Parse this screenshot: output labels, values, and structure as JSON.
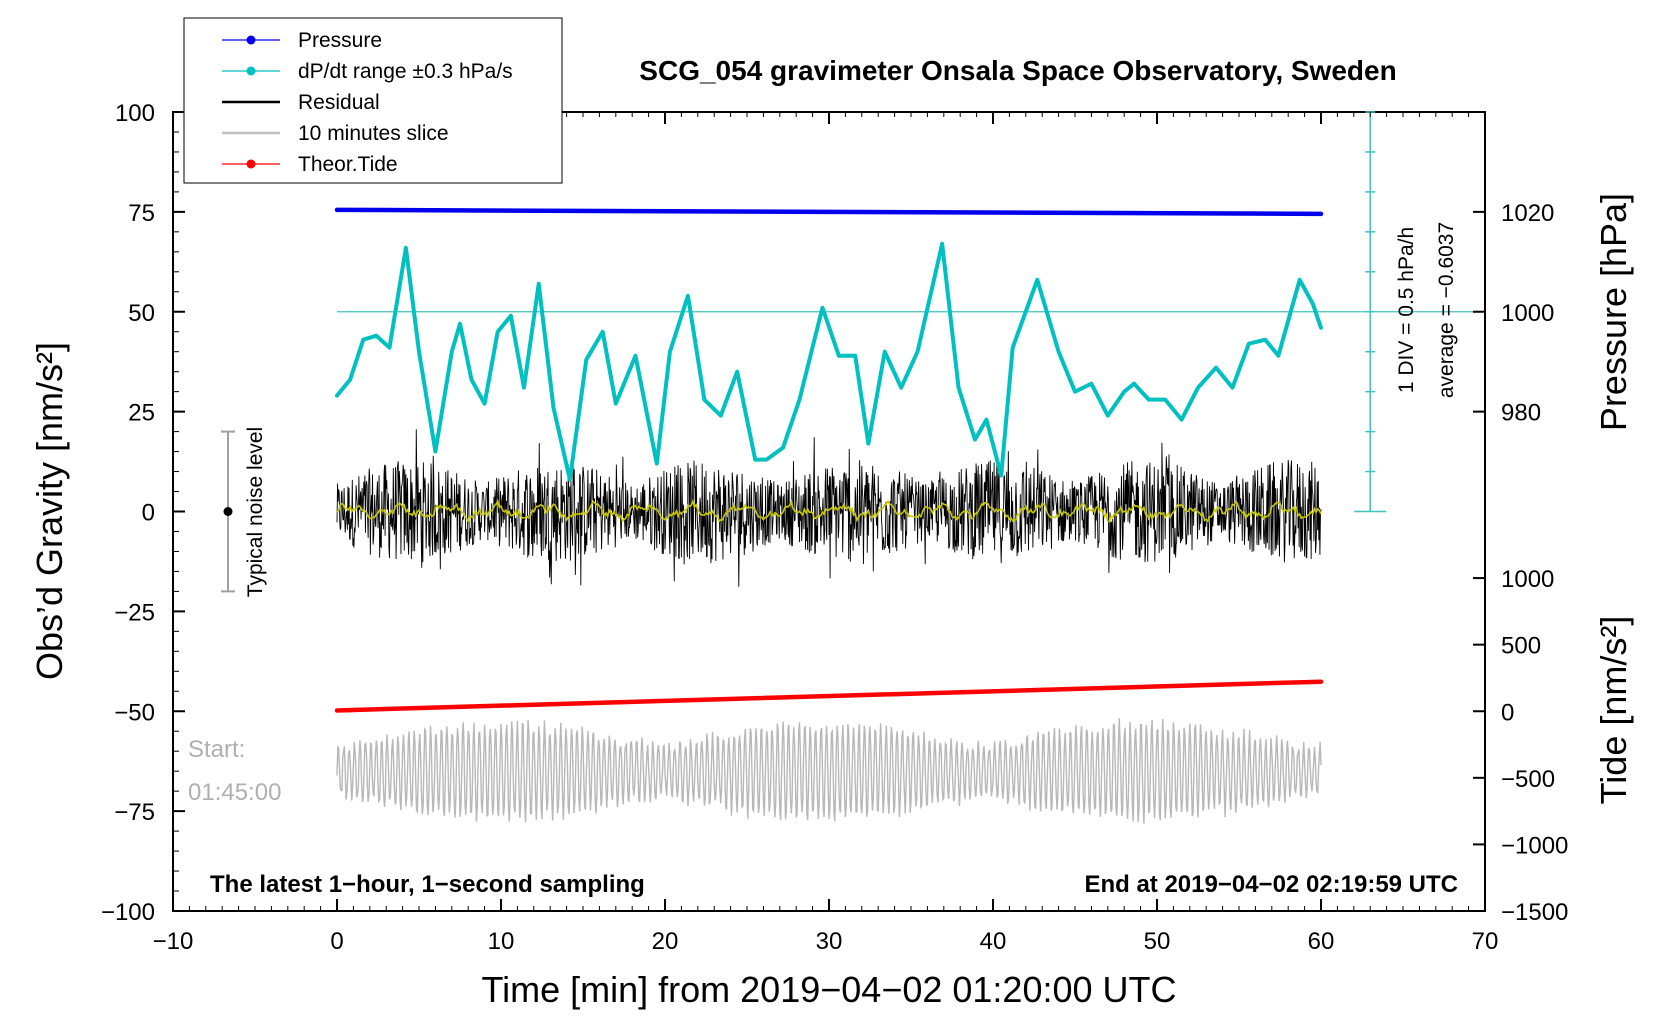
{
  "chart_data": {
    "type": "line",
    "title": "SCG_054 gravimeter Onsala Space Observatory, Sweden",
    "xlabel": "Time [min] from 2019−04−02 01:20:00 UTC",
    "ylabel_left": "Obs’d Gravity [nm/s²]",
    "ylabel_right_top": "Pressure [hPa]",
    "ylabel_right_bottom": "Tide [nm/s²]",
    "xlim": [
      -10,
      70
    ],
    "ylim": [
      -100,
      100
    ],
    "x_ticks": [
      "−10",
      "0",
      "10",
      "20",
      "30",
      "40",
      "50",
      "60",
      "70"
    ],
    "y_ticks": [
      "100",
      "75",
      "50",
      "25",
      "0",
      "−25",
      "−50",
      "−75",
      "−100"
    ],
    "pressure_ticks": [
      "1020",
      "1000",
      "980"
    ],
    "tide_ticks": [
      "1000",
      "500",
      "0",
      "−500",
      "−1000",
      "−1500"
    ],
    "legend": [
      {
        "label": "Pressure",
        "color": "#0000ee",
        "marker": true
      },
      {
        "label": "dP/dt range ±0.3 hPa/s",
        "color": "#00c0c0",
        "marker": true
      },
      {
        "label": "Residual",
        "color": "#000000",
        "marker": false
      },
      {
        "label": "10 minutes slice",
        "color": "#c0c0c0",
        "marker": false
      },
      {
        "label": "Theor.Tide",
        "color": "#ff0000",
        "marker": true
      }
    ],
    "series": [
      {
        "name": "Pressure",
        "color": "#0000ee",
        "x": [
          0,
          60
        ],
        "y": [
          75.5,
          74.5
        ]
      },
      {
        "name": "dP/dt",
        "color": "#00c0c0",
        "x": [
          0,
          0.8,
          1.6,
          2.4,
          3.2,
          4.2,
          5.0,
          6.0,
          7.0,
          7.5,
          8.2,
          9.0,
          9.8,
          10.6,
          11.4,
          12.3,
          13.2,
          14.2,
          15.2,
          16.2,
          17.0,
          18.2,
          19.5,
          20.3,
          21.4,
          22.4,
          23.4,
          24.4,
          25.5,
          26.2,
          27.2,
          28.2,
          29.6,
          30.6,
          31.6,
          32.4,
          33.4,
          34.4,
          35.4,
          36.9,
          37.9,
          38.9,
          39.6,
          40.5,
          41.2,
          42.7,
          44.0,
          45.0,
          46.0,
          47.0,
          48.0,
          48.6,
          49.5,
          50.5,
          51.5,
          52.5,
          53.6,
          54.6,
          55.6,
          56.6,
          57.4,
          58.7,
          59.5,
          60.0
        ],
        "y": [
          29,
          33,
          43,
          44,
          41,
          66,
          40,
          15,
          40,
          47,
          33,
          27,
          45,
          49,
          31,
          57,
          26,
          8,
          38,
          45,
          27,
          39,
          12,
          40,
          54,
          28,
          24,
          35,
          13,
          13,
          16,
          28,
          51,
          39,
          39,
          17,
          40,
          31,
          40,
          67,
          31,
          18,
          23,
          9,
          41,
          58,
          40,
          30,
          32,
          24,
          30,
          32,
          28,
          28,
          23,
          31,
          36,
          31,
          42,
          43,
          39,
          58,
          52,
          46
        ]
      },
      {
        "name": "Theor.Tide",
        "color": "#ff0000",
        "x": [
          0,
          60
        ],
        "y": [
          -49.8,
          -42.6
        ]
      }
    ],
    "reference_line_y": 50,
    "dpdt_scale_label": "1 DIV = 0.5 hPa/h",
    "dpdt_average_label": "average = −0.6037",
    "noise_label": "Typical noise level",
    "noise_range": [
      -20,
      20
    ],
    "slice_start_label": "Start:",
    "slice_start_time": "01:45:00",
    "bottom_left_label": "The latest 1−hour, 1−second sampling",
    "bottom_right_label": "End at 2019−04−02 02:19:59 UTC"
  }
}
